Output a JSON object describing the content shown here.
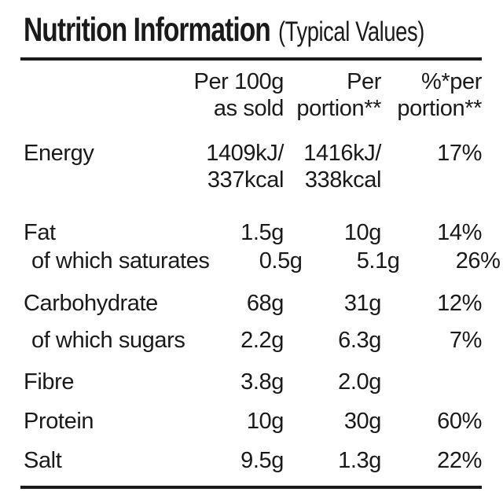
{
  "title": {
    "main": "Nutrition Information",
    "suffix": "(Typical Values)"
  },
  "header": {
    "per100_line1": "Per 100g",
    "per100_line2": "as sold",
    "portion_line1": "Per",
    "portion_line2": "portion**",
    "percent_line1": "%*per",
    "percent_line2": "portion**"
  },
  "rows": [
    {
      "label": "Energy",
      "per100_line1": "1409kJ/",
      "per100_line2": "337kcal",
      "portion_line1": "1416kJ/",
      "portion_line2": "338kcal",
      "percent": "17%"
    },
    {
      "label": "Fat",
      "per100": "1.5g",
      "portion": "10g",
      "percent": "14%"
    },
    {
      "label": "of which saturates",
      "per100": "0.5g",
      "portion": "5.1g",
      "percent": "26%"
    },
    {
      "label": "Carbohydrate",
      "per100": "68g",
      "portion": "31g",
      "percent": "12%"
    },
    {
      "label": "of which sugars",
      "per100": "2.2g",
      "portion": "6.3g",
      "percent": "7%"
    },
    {
      "label": "Fibre",
      "per100": "3.8g",
      "portion": "2.0g",
      "percent": ""
    },
    {
      "label": "Protein",
      "per100": "10g",
      "portion": "30g",
      "percent": "60%"
    },
    {
      "label": "Salt",
      "per100": "9.5g",
      "portion": "1.3g",
      "percent": "22%"
    }
  ],
  "colors": {
    "text": "#1a1a1a",
    "background": "#ffffff",
    "rule": "#1a1a1a"
  }
}
